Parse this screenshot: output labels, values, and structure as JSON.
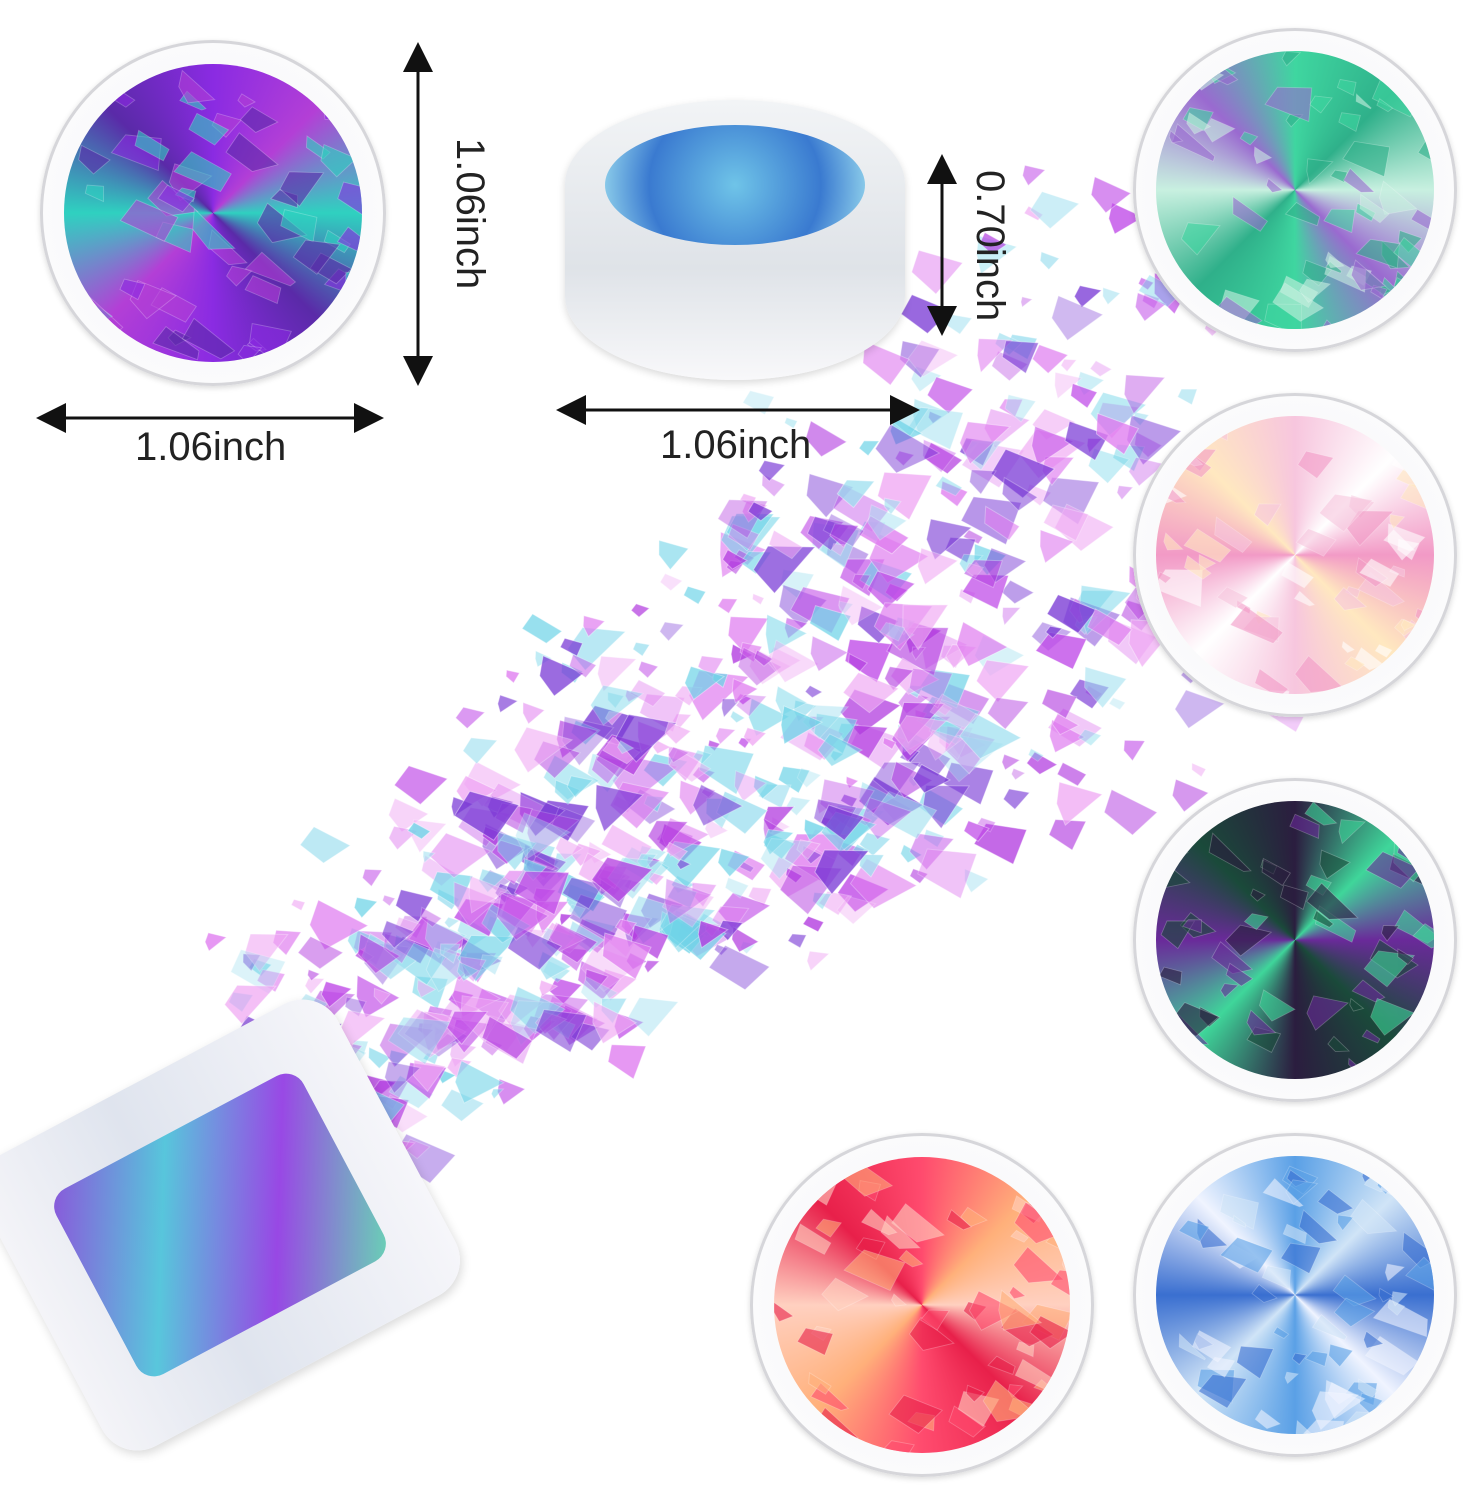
{
  "dimensions": {
    "top_left_height": "1.06inch",
    "top_left_width": "1.06inch",
    "side_jar_height": "0.70inch",
    "side_jar_width": "1.06inch"
  },
  "jars": [
    {
      "name": "purple-teal",
      "colors": [
        "#8a2be2",
        "#b33fd6",
        "#2fd1c0",
        "#5a2aa8"
      ]
    },
    {
      "name": "green-mint",
      "colors": [
        "#3fd6a0",
        "#2fb08a",
        "#c8f0e0",
        "#9a6ad0"
      ]
    },
    {
      "name": "pink-white",
      "colors": [
        "#f7c6de",
        "#ffffff",
        "#f29ac6",
        "#ffe8c0"
      ]
    },
    {
      "name": "dark-green-purple",
      "colors": [
        "#2b1d3f",
        "#3fd69a",
        "#6a2a9a",
        "#1a4a3a"
      ]
    },
    {
      "name": "red-orange",
      "colors": [
        "#ff4b6e",
        "#ffb07a",
        "#ffd0c0",
        "#e8204a"
      ]
    },
    {
      "name": "blue-silver",
      "colors": [
        "#5aa0e6",
        "#d0e4f7",
        "#3a6fd0",
        "#f0f4ff"
      ]
    }
  ],
  "flake_colors": [
    "#e07df0",
    "#b23be0",
    "#7a3ad6",
    "#6fd4e8",
    "#f0a8f4",
    "#9fe0f0",
    "#c04ae8"
  ]
}
